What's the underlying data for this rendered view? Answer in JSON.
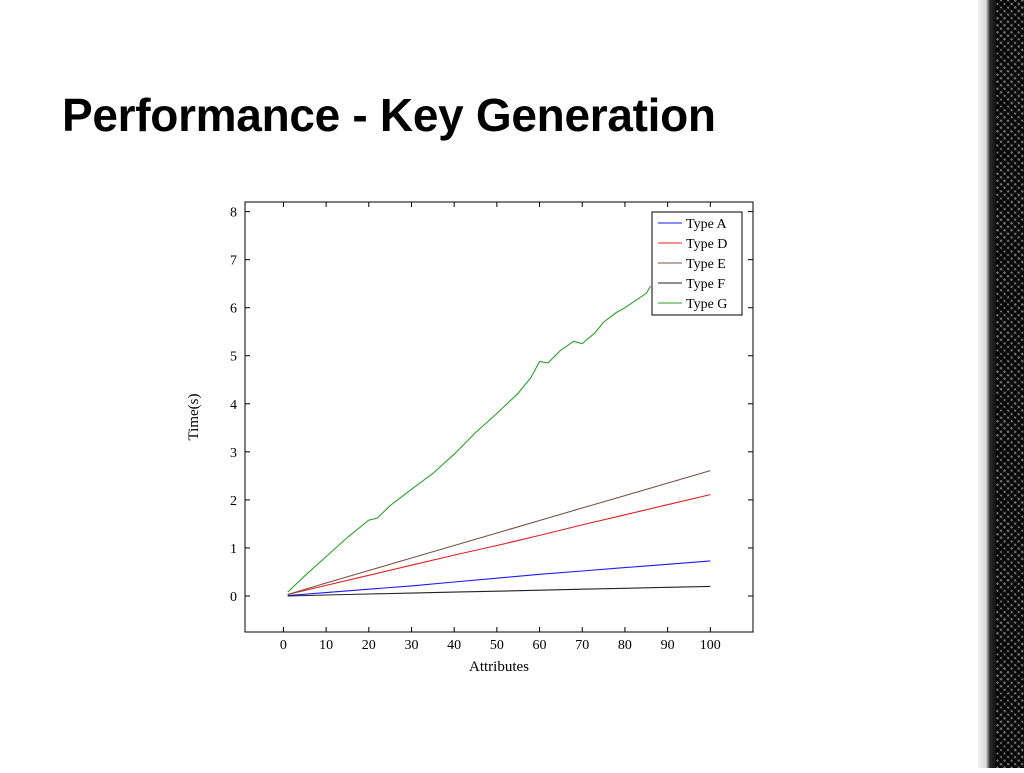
{
  "slide": {
    "title": "Performance - Key Generation"
  },
  "chart_data": {
    "type": "line",
    "xlabel": "Attributes",
    "ylabel": "Time(s)",
    "xlim": [
      -9,
      110
    ],
    "ylim": [
      -0.75,
      8.2
    ],
    "xticks": [
      0,
      10,
      20,
      30,
      40,
      50,
      60,
      70,
      80,
      90,
      100
    ],
    "yticks": [
      0,
      1,
      2,
      3,
      4,
      5,
      6,
      7,
      8
    ],
    "grid": false,
    "legend_position": "top-right",
    "series": [
      {
        "name": "Type A",
        "color": "#1a1aff",
        "x": [
          1,
          10,
          20,
          30,
          40,
          50,
          60,
          70,
          80,
          90,
          100
        ],
        "y": [
          0.01,
          0.07,
          0.14,
          0.21,
          0.29,
          0.37,
          0.45,
          0.52,
          0.59,
          0.66,
          0.73
        ]
      },
      {
        "name": "Type D",
        "color": "#e02020",
        "x": [
          1,
          10,
          20,
          30,
          40,
          50,
          60,
          70,
          80,
          90,
          100
        ],
        "y": [
          0.03,
          0.22,
          0.43,
          0.64,
          0.85,
          1.05,
          1.26,
          1.48,
          1.69,
          1.9,
          2.11
        ]
      },
      {
        "name": "Type E",
        "color": "#7a5040",
        "x": [
          1,
          10,
          20,
          30,
          40,
          50,
          60,
          70,
          80,
          90,
          100
        ],
        "y": [
          0.03,
          0.27,
          0.53,
          0.79,
          1.05,
          1.31,
          1.57,
          1.83,
          2.09,
          2.35,
          2.61
        ]
      },
      {
        "name": "Type F",
        "color": "#222222",
        "x": [
          1,
          10,
          20,
          30,
          40,
          50,
          60,
          70,
          80,
          90,
          100
        ],
        "y": [
          0.0,
          0.02,
          0.04,
          0.06,
          0.08,
          0.1,
          0.12,
          0.14,
          0.16,
          0.18,
          0.2
        ]
      },
      {
        "name": "Type G",
        "color": "#2aa02a",
        "x": [
          1,
          5,
          10,
          15,
          20,
          22,
          25,
          30,
          35,
          40,
          45,
          50,
          55,
          58,
          60,
          62,
          65,
          68,
          70,
          73,
          75,
          78,
          80,
          83,
          85,
          86
        ],
        "y": [
          0.08,
          0.42,
          0.82,
          1.22,
          1.58,
          1.62,
          1.88,
          2.22,
          2.55,
          2.95,
          3.4,
          3.8,
          4.22,
          4.55,
          4.88,
          4.85,
          5.12,
          5.3,
          5.25,
          5.48,
          5.7,
          5.9,
          6.0,
          6.18,
          6.3,
          6.45
        ]
      }
    ]
  }
}
